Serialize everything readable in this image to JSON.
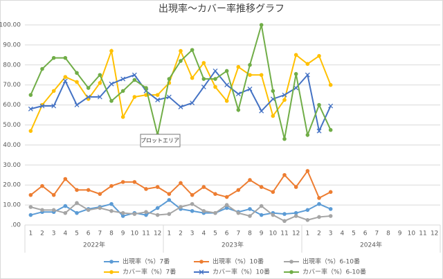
{
  "chart_data": {
    "type": "line",
    "title": "出現率～カバー率推移グラフ",
    "tooltip": "プロットエリア",
    "categories": [
      "1",
      "2",
      "3",
      "4",
      "5",
      "6",
      "7",
      "8",
      "9",
      "10",
      "11",
      "12",
      "1",
      "2",
      "3",
      "4",
      "5",
      "6",
      "7",
      "8",
      "9",
      "10",
      "11",
      "12",
      "1",
      "2",
      "3",
      "4",
      "5",
      "6",
      "7",
      "8",
      "9",
      "10",
      "11",
      "12"
    ],
    "x_groups": [
      "2022年",
      "2023年",
      "2024年"
    ],
    "ylim": [
      0,
      100
    ],
    "yticks": [
      {
        "value": 0,
        "label": ".00"
      },
      {
        "value": 10,
        "label": "10.00"
      },
      {
        "value": 20,
        "label": "20.00"
      },
      {
        "value": 30,
        "label": "30.00"
      },
      {
        "value": 40,
        "label": "40.00"
      },
      {
        "value": 50,
        "label": "50.00"
      },
      {
        "value": 60,
        "label": "60.00"
      },
      {
        "value": 70,
        "label": "70.00"
      },
      {
        "value": 80,
        "label": "80.00"
      },
      {
        "value": 90,
        "label": "90.00"
      },
      {
        "value": 100,
        "label": "100.00"
      }
    ],
    "grid": true,
    "legend": "bottom",
    "series": [
      {
        "name": "出現率（%）7番",
        "color": "#5b9bd5",
        "marker": "circle",
        "values": [
          5,
          6.5,
          6.5,
          9.5,
          6,
          8,
          9,
          10.5,
          4.5,
          6,
          5,
          8.5,
          12.5,
          8,
          7,
          6,
          6,
          8.5,
          6.5,
          8,
          5,
          6,
          5.5,
          6,
          7.5,
          10.5,
          8,
          null,
          null,
          null,
          null,
          null,
          null,
          null,
          null,
          null
        ]
      },
      {
        "name": "出現率（%）10番",
        "color": "#ed7d31",
        "marker": "circle",
        "values": [
          15,
          19.5,
          15,
          23,
          17.5,
          17.5,
          15.5,
          19.5,
          21.5,
          21.5,
          18,
          19,
          15.5,
          21,
          15,
          19,
          15.5,
          14,
          17.5,
          22.5,
          19,
          16.5,
          25,
          19,
          27,
          13.5,
          16.5,
          null,
          null,
          null,
          null,
          null,
          null,
          null,
          null,
          null
        ]
      },
      {
        "name": "出現率（%）6-10番",
        "color": "#a5a5a5",
        "marker": "circle",
        "values": [
          9,
          7.5,
          7.5,
          6,
          11,
          7.5,
          8.5,
          7,
          6,
          5.5,
          6.5,
          5,
          5.5,
          9,
          10.5,
          7,
          6,
          10,
          6,
          4.5,
          9.5,
          5,
          2,
          4.5,
          2.5,
          4,
          4.5,
          null,
          null,
          null,
          null,
          null,
          null,
          null,
          null,
          null
        ]
      },
      {
        "name": "カバー率（%）7番",
        "color": "#ffc000",
        "marker": "circle",
        "values": [
          47,
          60,
          67,
          74,
          71.5,
          63,
          71,
          87,
          54,
          64,
          65,
          65,
          71,
          87,
          73.5,
          81,
          69,
          62,
          79,
          75,
          75,
          54.5,
          62.5,
          85,
          80.5,
          84.5,
          70,
          null,
          null,
          null,
          null,
          null,
          null,
          null,
          null,
          null
        ]
      },
      {
        "name": "カバー率（%）10番",
        "color": "#4472c4",
        "marker": "x",
        "values": [
          58,
          59.5,
          59.5,
          72,
          60,
          64,
          64,
          70.5,
          73,
          75,
          67,
          62.5,
          64,
          59,
          61,
          69,
          77,
          70,
          65.5,
          68,
          57,
          63,
          65,
          68.5,
          75,
          47,
          59.5,
          null,
          null,
          null,
          null,
          null,
          null,
          null,
          null,
          null
        ]
      },
      {
        "name": "カバー率（%）6-10番",
        "color": "#70ad47",
        "marker": "circle",
        "values": [
          65,
          78,
          83.5,
          83.5,
          76,
          68.5,
          75,
          62,
          67,
          72.5,
          68.5,
          45,
          73,
          82,
          87.5,
          73,
          73,
          77,
          57.5,
          80,
          100,
          67,
          43,
          75.5,
          45,
          60,
          47.5,
          null,
          null,
          null,
          null,
          null,
          null,
          null,
          null,
          null
        ]
      }
    ]
  }
}
